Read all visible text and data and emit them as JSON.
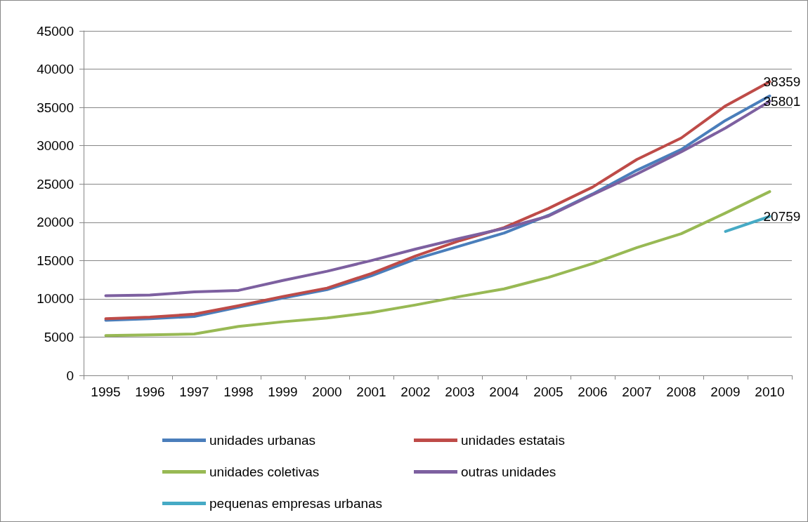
{
  "chart_data": {
    "type": "line",
    "categories": [
      "1995",
      "1996",
      "1997",
      "1998",
      "1999",
      "2000",
      "2001",
      "2002",
      "2003",
      "2004",
      "2005",
      "2006",
      "2007",
      "2008",
      "2009",
      "2010"
    ],
    "series": [
      {
        "name": "unidades urbanas",
        "color": "#4a7ebb",
        "values": [
          7200,
          7400,
          7700,
          8900,
          10100,
          11200,
          13000,
          15200,
          16900,
          18600,
          20900,
          23700,
          26800,
          29500,
          33300,
          36500
        ]
      },
      {
        "name": "unidades estatais",
        "color": "#be4b48",
        "values": [
          7400,
          7600,
          8000,
          9100,
          10300,
          11400,
          13300,
          15600,
          17600,
          19300,
          21800,
          24600,
          28200,
          31000,
          35200,
          38359
        ],
        "value_labels": [
          null,
          null,
          null,
          null,
          null,
          null,
          null,
          null,
          null,
          null,
          null,
          null,
          null,
          null,
          null,
          "38359"
        ]
      },
      {
        "name": "unidades coletivas",
        "color": "#98b954",
        "values": [
          5200,
          5300,
          5400,
          6400,
          7000,
          7500,
          8200,
          9200,
          10300,
          11300,
          12800,
          14600,
          16700,
          18500,
          21200,
          24000
        ]
      },
      {
        "name": "outras unidades",
        "color": "#7d60a0",
        "values": [
          10400,
          10500,
          10900,
          11100,
          12400,
          13600,
          15000,
          16500,
          17900,
          19200,
          20800,
          23600,
          26300,
          29200,
          32300,
          35801
        ],
        "value_labels": [
          null,
          null,
          null,
          null,
          null,
          null,
          null,
          null,
          null,
          null,
          null,
          null,
          null,
          null,
          null,
          "35801"
        ]
      },
      {
        "name": "pequenas empresas urbanas",
        "color": "#46aac5",
        "values": [
          null,
          null,
          null,
          null,
          null,
          null,
          null,
          null,
          null,
          null,
          null,
          null,
          null,
          null,
          18800,
          20759
        ],
        "value_labels": [
          null,
          null,
          null,
          null,
          null,
          null,
          null,
          null,
          null,
          null,
          null,
          null,
          null,
          null,
          null,
          "20759"
        ]
      }
    ],
    "ylim": [
      0,
      45000
    ],
    "yticks": [
      0,
      5000,
      10000,
      15000,
      20000,
      25000,
      30000,
      35000,
      40000,
      45000
    ],
    "grid": "y",
    "legend": "bottom",
    "marker": "none",
    "line_style": "solid"
  }
}
